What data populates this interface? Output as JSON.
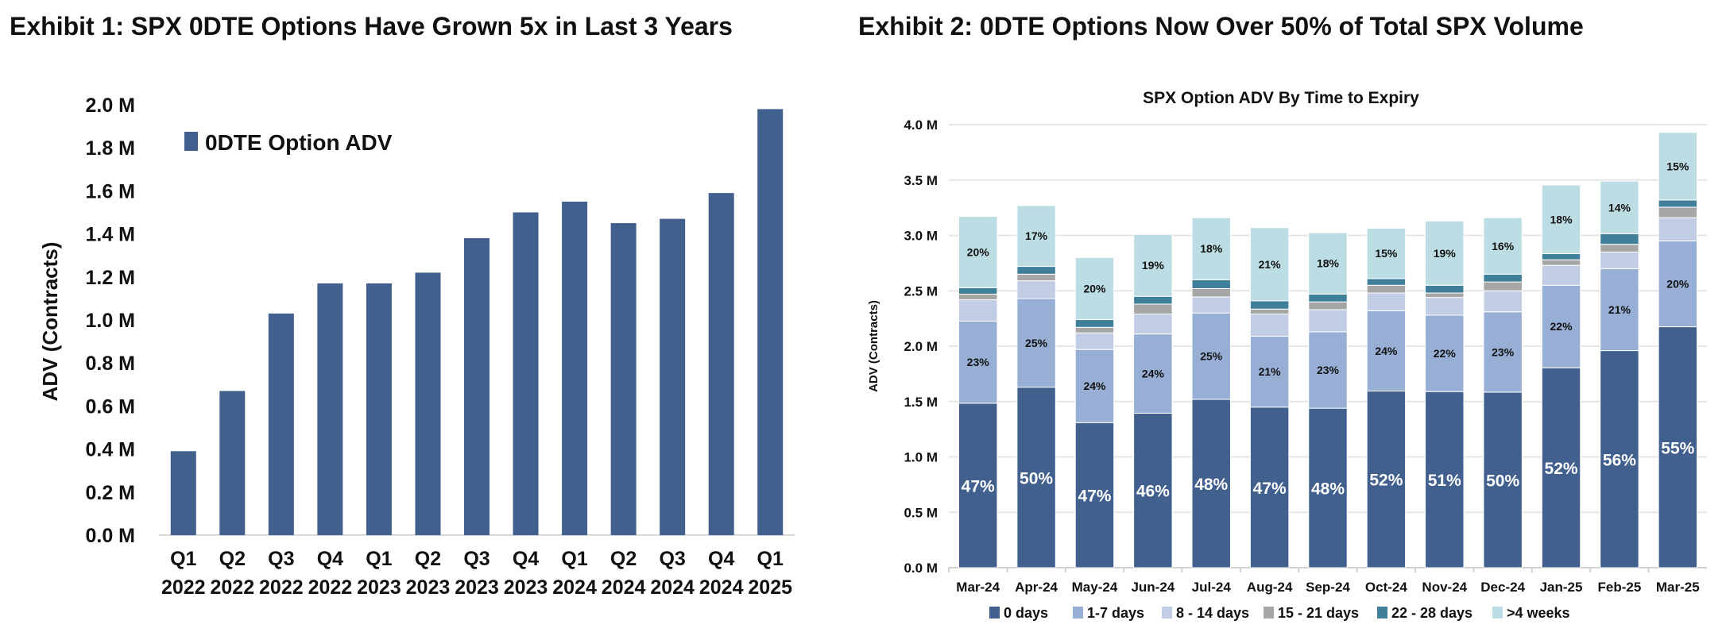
{
  "chart_data": [
    {
      "type": "bar",
      "title": "Exhibit 1: SPX 0DTE Options Have Grown 5x in Last 3 Years",
      "xlabel": "",
      "ylabel": "ADV (Contracts)",
      "ylim": [
        0,
        2.0
      ],
      "yticks": [
        "0.0 M",
        "0.2 M",
        "0.4 M",
        "0.6 M",
        "0.8 M",
        "1.0 M",
        "1.2 M",
        "1.4 M",
        "1.6 M",
        "1.8 M",
        "2.0 M"
      ],
      "grid": false,
      "legend_position": "top-left",
      "categories": [
        [
          "Q1",
          "2022"
        ],
        [
          "Q2",
          "2022"
        ],
        [
          "Q3",
          "2022"
        ],
        [
          "Q4",
          "2022"
        ],
        [
          "Q1",
          "2023"
        ],
        [
          "Q2",
          "2023"
        ],
        [
          "Q3",
          "2023"
        ],
        [
          "Q4",
          "2023"
        ],
        [
          "Q1",
          "2024"
        ],
        [
          "Q2",
          "2024"
        ],
        [
          "Q3",
          "2024"
        ],
        [
          "Q4",
          "2024"
        ],
        [
          "Q1",
          "2025"
        ]
      ],
      "series": [
        {
          "name": "0DTE Option ADV",
          "color": "#41608e",
          "values": [
            0.39,
            0.67,
            1.03,
            1.17,
            1.17,
            1.22,
            1.38,
            1.5,
            1.55,
            1.45,
            1.47,
            1.59,
            1.98
          ]
        }
      ],
      "units": "M contracts"
    },
    {
      "type": "bar",
      "stacked": true,
      "title": "Exhibit 2: 0DTE Options Now Over 50% of Total SPX Volume",
      "subtitle": "SPX Option ADV By Time to Expiry",
      "xlabel": "",
      "ylabel": "ADV (Contracts)",
      "ylim": [
        0,
        4.0
      ],
      "yticks": [
        "0.0 M",
        "0.5 M",
        "1.0 M",
        "1.5 M",
        "2.0 M",
        "2.5 M",
        "3.0 M",
        "3.5 M",
        "4.0 M"
      ],
      "grid": true,
      "legend_position": "bottom",
      "categories": [
        "Mar-24",
        "Apr-24",
        "May-24",
        "Jun-24",
        "Jul-24",
        "Aug-24",
        "Sep-24",
        "Oct-24",
        "Nov-24",
        "Dec-24",
        "Jan-25",
        "Feb-25",
        "Mar-25"
      ],
      "series": [
        {
          "name": "0 days",
          "color": "#41608e",
          "label_color": "#ffffff",
          "values": [
            1.485,
            1.63,
            1.31,
            1.395,
            1.52,
            1.45,
            1.44,
            1.595,
            1.59,
            1.585,
            1.805,
            1.96,
            2.175
          ],
          "labels": [
            "47%",
            "50%",
            "47%",
            "46%",
            "48%",
            "47%",
            "48%",
            "52%",
            "51%",
            "50%",
            "52%",
            "56%",
            "55%"
          ]
        },
        {
          "name": "1-7 days",
          "color": "#98afd5",
          "label_color": "#111111",
          "values": [
            0.741,
            0.8,
            0.66,
            0.715,
            0.78,
            0.64,
            0.69,
            0.725,
            0.69,
            0.725,
            0.745,
            0.74,
            0.775
          ],
          "labels": [
            "23%",
            "25%",
            "24%",
            "24%",
            "25%",
            "21%",
            "23%",
            "24%",
            "22%",
            "23%",
            "22%",
            "21%",
            "20%"
          ]
        },
        {
          "name": "8 - 14 days",
          "color": "#c0cde4",
          "values": [
            0.193,
            0.16,
            0.15,
            0.18,
            0.145,
            0.2,
            0.2,
            0.16,
            0.16,
            0.19,
            0.18,
            0.15,
            0.21
          ]
        },
        {
          "name": "15 - 21 days",
          "color": "#a6a6a6",
          "values": [
            0.051,
            0.06,
            0.05,
            0.09,
            0.075,
            0.045,
            0.07,
            0.07,
            0.04,
            0.08,
            0.05,
            0.07,
            0.095
          ]
        },
        {
          "name": "22 - 28 days",
          "color": "#3f7f9a",
          "values": [
            0.058,
            0.07,
            0.07,
            0.07,
            0.08,
            0.075,
            0.07,
            0.06,
            0.07,
            0.07,
            0.055,
            0.095,
            0.065
          ]
        },
        {
          "name": ">4 weeks",
          "color": "#bddde4",
          "label_color": "#111111",
          "values": [
            0.644,
            0.55,
            0.56,
            0.56,
            0.56,
            0.66,
            0.555,
            0.455,
            0.58,
            0.51,
            0.62,
            0.475,
            0.61
          ],
          "labels": [
            "20%",
            "17%",
            "20%",
            "19%",
            "18%",
            "21%",
            "18%",
            "15%",
            "19%",
            "16%",
            "18%",
            "14%",
            "15%"
          ]
        }
      ],
      "units": "M contracts"
    }
  ]
}
